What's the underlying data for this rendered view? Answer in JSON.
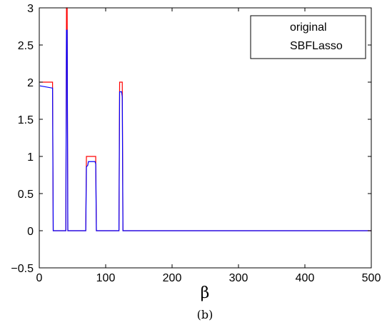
{
  "chart_data": {
    "type": "line",
    "xlabel": "β",
    "ylabel": "",
    "caption": "(b)",
    "xlim": [
      0,
      500
    ],
    "ylim": [
      -0.5,
      3
    ],
    "xticks": [
      0,
      100,
      200,
      300,
      400,
      500
    ],
    "yticks": [
      -0.5,
      0,
      0.5,
      1,
      1.5,
      2,
      2.5,
      3
    ],
    "xtick_labels": [
      "0",
      "100",
      "200",
      "300",
      "400",
      "500"
    ],
    "ytick_labels": [
      "−0.5",
      "0",
      "0.5",
      "1",
      "1.5",
      "2",
      "2.5",
      "3"
    ],
    "grid": false,
    "legend_position": "top-right",
    "series": [
      {
        "name": "original",
        "color": "#ff0000",
        "x": [
          1,
          20,
          21,
          40,
          41,
          42,
          43,
          70,
          71,
          85,
          86,
          120,
          121,
          125,
          126,
          500
        ],
        "y": [
          2,
          2,
          0,
          0,
          3,
          3,
          0,
          0,
          1,
          1,
          0,
          0,
          2,
          2,
          0,
          0
        ]
      },
      {
        "name": "SBFLasso",
        "color": "#0000ff",
        "x": [
          1,
          20,
          21,
          40,
          41,
          42,
          43,
          70,
          71,
          73,
          74,
          84,
          85,
          86,
          120,
          121,
          124,
          125,
          126,
          500
        ],
        "y": [
          1.95,
          1.92,
          0,
          0,
          2.7,
          2.7,
          0,
          0,
          0.86,
          0.88,
          0.93,
          0.93,
          0.9,
          0,
          0,
          1.87,
          1.87,
          1.8,
          0,
          0
        ]
      }
    ]
  }
}
